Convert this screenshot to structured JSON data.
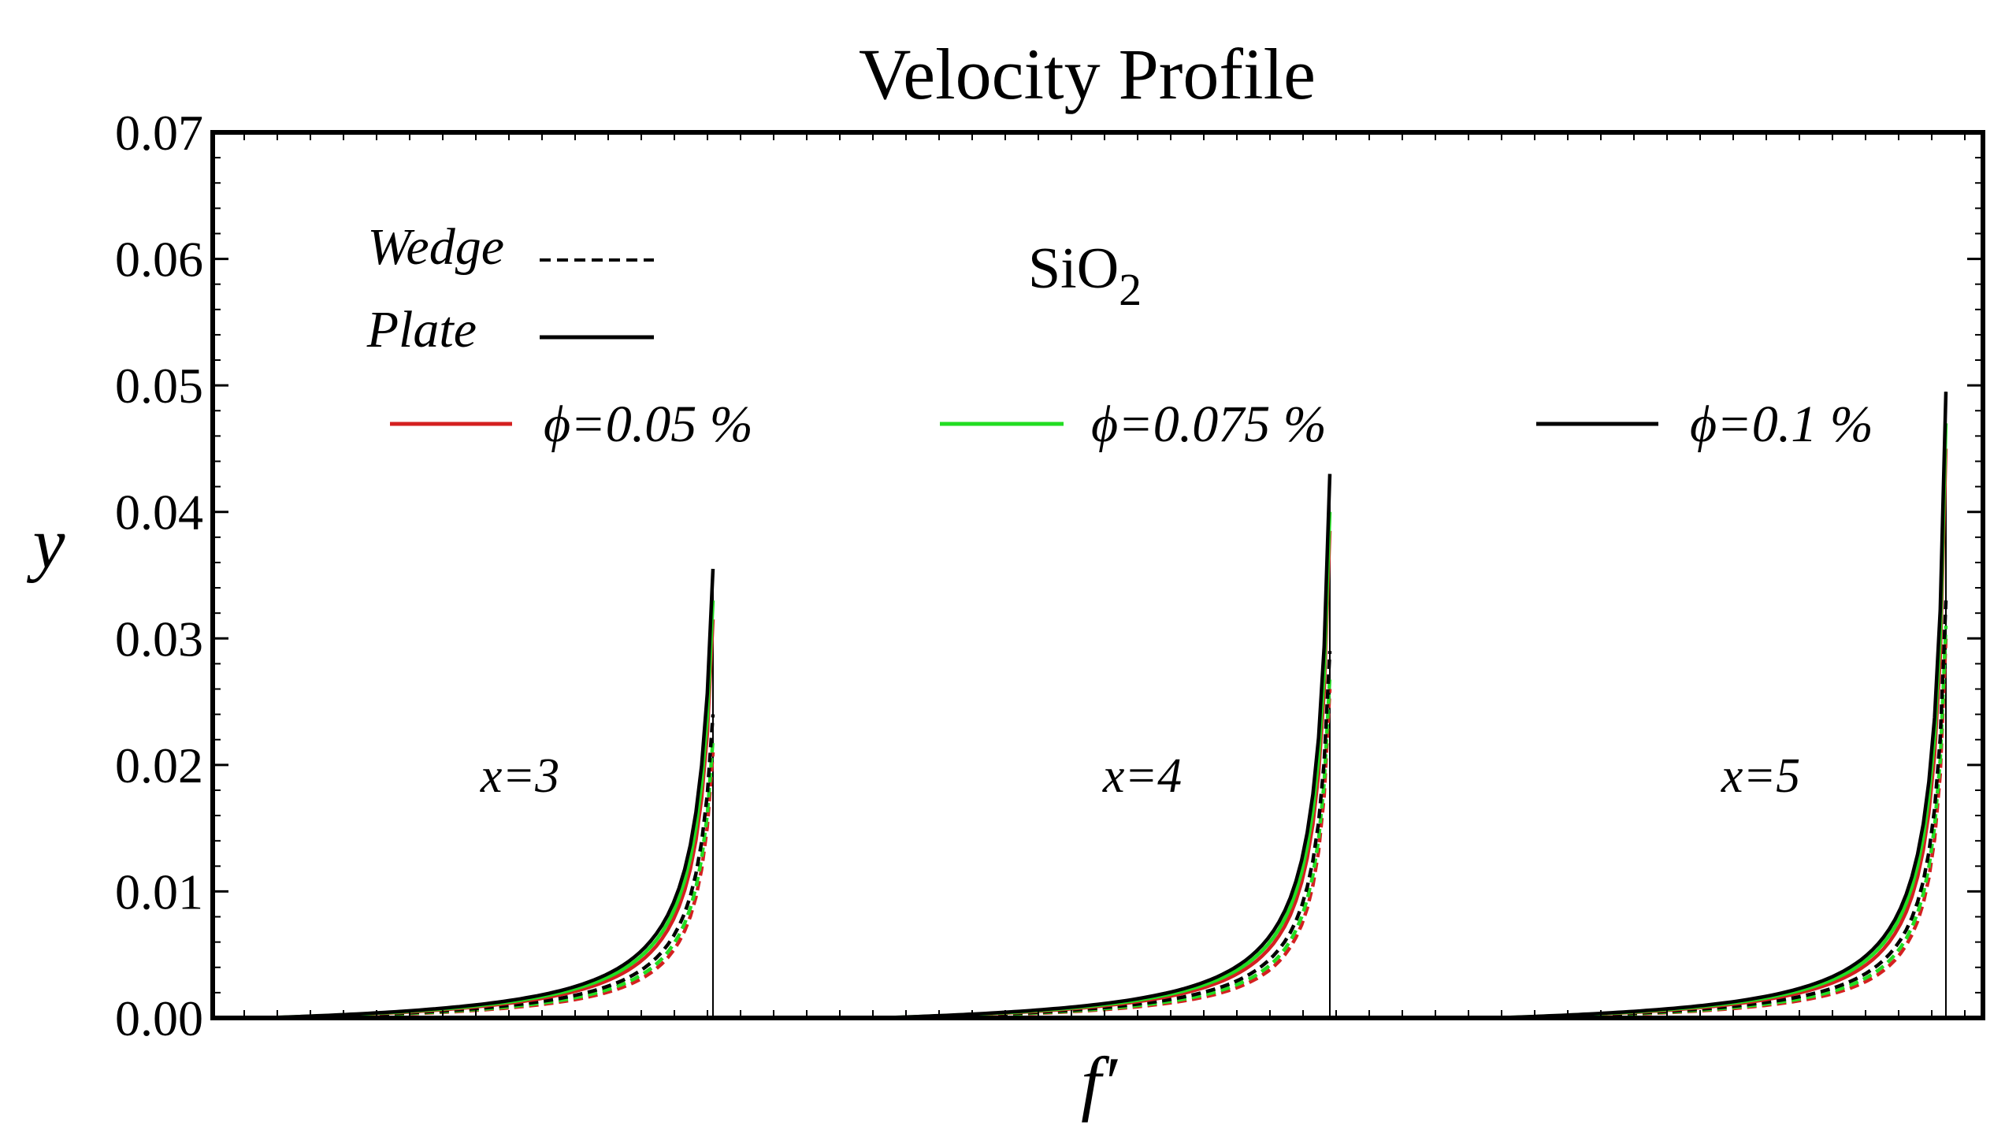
{
  "chart_data": {
    "type": "line",
    "title": "Velocity Profile",
    "xlabel": "f′",
    "ylabel": "y",
    "ylim": [
      0,
      0.07
    ],
    "y_ticks": [
      "0.00",
      "0.01",
      "0.02",
      "0.03",
      "0.04",
      "0.05",
      "0.06",
      "0.07"
    ],
    "material": {
      "base": "SiO",
      "sub": "2"
    },
    "style_legend": [
      {
        "label": "Wedge",
        "dash": "dashed",
        "color": "#000000"
      },
      {
        "label": "Plate",
        "dash": "solid",
        "color": "#000000"
      }
    ],
    "phi_legend": [
      {
        "label": "ϕ=0.05 %",
        "color": "#d42020"
      },
      {
        "label": "ϕ=0.075 %",
        "color": "#22dd22"
      },
      {
        "label": "ϕ=0.1 %",
        "color": "#000000"
      }
    ],
    "groups": [
      {
        "label": "x=3",
        "peak_y": {
          "plate": [
            0.0315,
            0.033,
            0.0355
          ],
          "wedge": [
            0.021,
            0.022,
            0.024
          ]
        },
        "knee_y": {
          "plate": [
            0.0055,
            0.006,
            0.0065
          ],
          "wedge": [
            0.0038,
            0.0042,
            0.0047
          ]
        }
      },
      {
        "label": "x=4",
        "peak_y": {
          "plate": [
            0.0385,
            0.04,
            0.043
          ],
          "wedge": [
            0.026,
            0.027,
            0.029
          ]
        },
        "knee_y": {
          "plate": [
            0.0055,
            0.006,
            0.0065
          ],
          "wedge": [
            0.0038,
            0.0042,
            0.0047
          ]
        }
      },
      {
        "label": "x=5",
        "peak_y": {
          "plate": [
            0.045,
            0.047,
            0.0495
          ],
          "wedge": [
            0.03,
            0.031,
            0.033
          ]
        },
        "knee_y": {
          "plate": [
            0.0055,
            0.006,
            0.0065
          ],
          "wedge": [
            0.0038,
            0.0042,
            0.0047
          ]
        }
      }
    ]
  }
}
